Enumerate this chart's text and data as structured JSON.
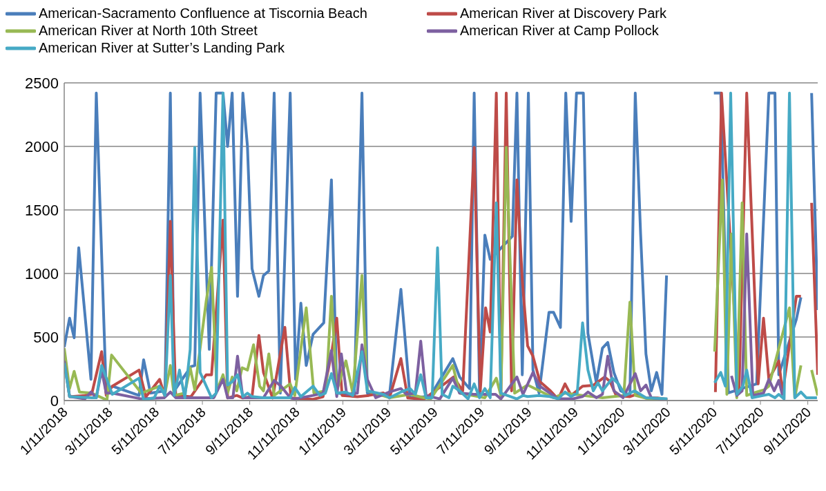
{
  "chart_data": {
    "type": "line",
    "legend": "top",
    "grid": "y",
    "marker": "none",
    "line_style": "solid",
    "xlim": [
      "2018-01-11",
      "2020-09-24"
    ],
    "xticks": [
      {
        "value": "2018-01-11",
        "label": "1/11/2018"
      },
      {
        "value": "2018-03-11",
        "label": "3/11/2018"
      },
      {
        "value": "2018-05-11",
        "label": "5/11/2018"
      },
      {
        "value": "2018-07-11",
        "label": "7/11/2018"
      },
      {
        "value": "2018-09-11",
        "label": "9/11/2018"
      },
      {
        "value": "2018-11-11",
        "label": "11/11/2018"
      },
      {
        "value": "2019-01-11",
        "label": "1/11/2019"
      },
      {
        "value": "2019-03-11",
        "label": "3/11/2019"
      },
      {
        "value": "2019-05-11",
        "label": "5/11/2019"
      },
      {
        "value": "2019-07-11",
        "label": "7/11/2019"
      },
      {
        "value": "2019-09-11",
        "label": "9/11/2019"
      },
      {
        "value": "2019-11-11",
        "label": "11/11/2019"
      },
      {
        "value": "2020-01-11",
        "label": "1/11/2020"
      },
      {
        "value": "2020-03-11",
        "label": "3/11/2020"
      },
      {
        "value": "2020-05-11",
        "label": "5/11/2020"
      },
      {
        "value": "2020-07-11",
        "label": "7/11/2020"
      },
      {
        "value": "2020-09-11",
        "label": "9/11/2020"
      }
    ],
    "ylim": [
      0,
      2500
    ],
    "yticks": [
      0,
      500,
      1000,
      1500,
      2000,
      2500
    ],
    "series": [
      {
        "name": "American-Sacramento Confluence at Tiscornia Beach",
        "color": "#4a7ebb",
        "x": [
          "2018-01-11",
          "2018-01-18",
          "2018-01-24",
          "2018-01-30",
          "2018-02-15",
          "2018-02-22",
          "2018-03-07",
          "2018-03-15",
          "2018-04-19",
          "2018-04-25",
          "2018-05-04",
          "2018-05-23",
          "2018-05-30",
          "2018-06-04",
          "2018-06-26",
          "2018-07-01",
          "2018-07-08",
          "2018-07-20",
          "2018-07-29",
          "2018-08-07",
          "2018-08-13",
          "2018-08-19",
          "2018-08-26",
          "2018-09-02",
          "2018-09-08",
          "2018-09-14",
          "2018-09-23",
          "2018-09-29",
          "2018-10-06",
          "2018-10-13",
          "2018-10-21",
          "2018-11-03",
          "2018-11-10",
          "2018-11-17",
          "2018-11-24",
          "2018-12-03",
          "2018-12-17",
          "2018-12-27",
          "2019-01-03",
          "2019-01-26",
          "2019-02-05",
          "2019-02-12",
          "2019-03-13",
          "2019-03-28",
          "2019-04-09",
          "2019-04-27",
          "2019-05-06",
          "2019-06-04",
          "2019-06-13",
          "2019-06-26",
          "2019-07-02",
          "2019-07-09",
          "2019-07-16",
          "2019-07-23",
          "2019-08-21",
          "2019-08-27",
          "2019-09-03",
          "2019-09-11",
          "2019-09-17",
          "2019-09-25",
          "2019-10-08",
          "2019-10-14",
          "2019-10-23",
          "2019-10-30",
          "2019-11-06",
          "2019-11-13",
          "2019-11-22",
          "2019-11-28",
          "2019-12-09",
          "2019-12-17",
          "2019-12-24",
          "2020-01-01",
          "2020-01-10",
          "2020-01-22",
          "2020-01-29",
          "2020-02-05",
          "2020-02-12",
          "2020-02-19",
          "2020-02-26",
          "2020-03-04",
          "2020-03-10",
          "2020-04-10",
          "2020-05-11",
          "2020-05-20",
          "2020-05-30",
          "2020-07-06",
          "2020-07-22",
          "2020-07-30",
          "2020-08-04",
          "2020-08-27",
          "2020-09-02",
          "2020-09-09",
          "2020-09-16",
          "2020-09-24"
        ],
        "values": [
          421,
          648,
          494,
          1202,
          167,
          2420,
          58,
          113,
          40,
          321,
          58,
          76,
          2420,
          76,
          267,
          276,
          2420,
          403,
          2420,
          2420,
          2000,
          2420,
          820,
          2420,
          2000,
          1038,
          820,
          984,
          1020,
          2420,
          58,
          2420,
          167,
          766,
          276,
          521,
          612,
          1737,
          60,
          40,
          2420,
          58,
          40,
          875,
          22,
          30,
          40,
          330,
          185,
          94,
          2420,
          58,
          1302,
          1111,
          1293,
          2420,
          203,
          2420,
          240,
          58,
          694,
          694,
          575,
          2420,
          1410,
          2420,
          2420,
          530,
          140,
          412,
          457,
          221,
          76,
          40,
          2420,
          1311,
          367,
          76,
          221,
          49,
          984,
          null,
          2420,
          2420,
          60,
          131,
          2420,
          2420,
          203,
          639,
          812,
          null,
          2420,
          712
        ]
      },
      {
        "name": "American River at Discovery Park",
        "color": "#be4b48",
        "x": [
          "2018-01-11",
          "2018-01-18",
          "2018-02-07",
          "2018-02-16",
          "2018-03-01",
          "2018-03-07",
          "2018-03-15",
          "2018-04-19",
          "2018-04-28",
          "2018-05-16",
          "2018-05-23",
          "2018-05-30",
          "2018-06-06",
          "2018-06-26",
          "2018-07-16",
          "2018-07-23",
          "2018-08-07",
          "2018-08-13",
          "2018-08-25",
          "2018-09-02",
          "2018-09-14",
          "2018-09-23",
          "2018-09-29",
          "2018-10-11",
          "2018-10-27",
          "2018-11-04",
          "2018-12-03",
          "2018-12-16",
          "2018-12-28",
          "2019-01-03",
          "2019-01-10",
          "2019-01-30",
          "2019-02-14",
          "2019-03-05",
          "2019-03-13",
          "2019-03-28",
          "2019-04-06",
          "2019-04-27",
          "2019-06-05",
          "2019-06-17",
          "2019-07-02",
          "2019-07-10",
          "2019-07-17",
          "2019-07-23",
          "2019-07-31",
          "2019-08-06",
          "2019-08-13",
          "2019-08-20",
          "2019-08-27",
          "2019-09-03",
          "2019-09-10",
          "2019-09-17",
          "2019-09-26",
          "2019-10-10",
          "2019-10-20",
          "2019-10-29",
          "2019-11-06",
          "2019-11-21",
          "2019-12-05",
          "2019-12-20",
          "2019-12-27",
          "2020-01-04",
          "2020-01-22",
          "2020-01-31",
          "2020-02-12",
          "2020-02-27",
          "2020-03-11",
          "2020-04-10",
          "2020-05-13",
          "2020-05-21",
          "2020-06-13",
          "2020-06-23",
          "2020-07-08",
          "2020-07-15",
          "2020-07-22",
          "2020-08-04",
          "2020-08-09",
          "2020-08-27",
          "2020-09-02",
          "2020-09-09",
          "2020-09-16",
          "2020-09-24"
        ],
        "values": [
          330,
          30,
          40,
          50,
          385,
          40,
          113,
          240,
          30,
          167,
          30,
          1411,
          40,
          30,
          203,
          203,
          1420,
          20,
          40,
          20,
          30,
          512,
          221,
          20,
          576,
          20,
          10,
          30,
          403,
          648,
          40,
          30,
          40,
          60,
          20,
          330,
          20,
          10,
          185,
          76,
          1992,
          76,
          730,
          539,
          2420,
          58,
          2420,
          76,
          1737,
          948,
          430,
          349,
          149,
          76,
          10,
          131,
          40,
          113,
          120,
          185,
          150,
          40,
          30,
          50,
          20,
          20,
          10,
          null,
          67,
          2420,
          94,
          2420,
          131,
          648,
          167,
          312,
          58,
          820,
          820,
          null,
          1556,
          203
        ]
      },
      {
        "name": "American River at North 10th Street",
        "color": "#98b954",
        "x": [
          "2018-01-11",
          "2018-01-18",
          "2018-01-24",
          "2018-01-31",
          "2018-02-16",
          "2018-03-08",
          "2018-03-14",
          "2018-04-22",
          "2018-05-16",
          "2018-05-23",
          "2018-05-30",
          "2018-06-04",
          "2018-06-18",
          "2018-06-25",
          "2018-07-01",
          "2018-07-16",
          "2018-07-23",
          "2018-07-30",
          "2018-08-07",
          "2018-08-13",
          "2018-08-19",
          "2018-08-25",
          "2018-09-01",
          "2018-09-08",
          "2018-09-16",
          "2018-09-24",
          "2018-09-29",
          "2018-10-06",
          "2018-10-13",
          "2018-11-03",
          "2018-11-09",
          "2018-11-24",
          "2018-12-04",
          "2018-12-20",
          "2018-12-27",
          "2019-01-03",
          "2019-01-15",
          "2019-01-24",
          "2019-02-05",
          "2019-02-12",
          "2019-03-13",
          "2019-04-09",
          "2019-04-27",
          "2019-05-06",
          "2019-06-04",
          "2019-06-13",
          "2019-07-16",
          "2019-07-31",
          "2019-08-06",
          "2019-08-13",
          "2019-08-24",
          "2019-09-10",
          "2019-10-14",
          "2019-10-29",
          "2019-11-21",
          "2019-12-17",
          "2020-01-14",
          "2020-01-22",
          "2020-01-29",
          "2020-02-15",
          "2020-03-11",
          "2020-04-10",
          "2020-05-12",
          "2020-05-22",
          "2020-05-28",
          "2020-06-03",
          "2020-06-10",
          "2020-06-17",
          "2020-06-23",
          "2020-07-06",
          "2020-07-16",
          "2020-07-22",
          "2020-08-18",
          "2020-08-25",
          "2020-09-02",
          "2020-09-09",
          "2020-09-16",
          "2020-09-24"
        ],
        "values": [
          412,
          95,
          230,
          67,
          58,
          4,
          358,
          58,
          113,
          58,
          276,
          40,
          58,
          258,
          85,
          784,
          1048,
          76,
          203,
          58,
          185,
          76,
          258,
          240,
          439,
          113,
          76,
          367,
          40,
          131,
          40,
          730,
          58,
          76,
          821,
          76,
          312,
          58,
          984,
          76,
          22,
          49,
          22,
          13,
          276,
          58,
          22,
          176,
          40,
          1992,
          58,
          122,
          22,
          58,
          40,
          22,
          40,
          775,
          40,
          13,
          4,
          null,
          385,
          1737,
          49,
          1311,
          22,
          1556,
          40,
          67,
          85,
          113,
          730,
          22,
          276,
          null,
          240,
          40
        ]
      },
      {
        "name": "American River at Camp Pollock",
        "color": "#7d60a0",
        "x": [
          "2018-01-11",
          "2018-01-18",
          "2018-02-07",
          "2018-02-15",
          "2018-02-22",
          "2018-03-01",
          "2018-03-07",
          "2018-03-15",
          "2018-04-22",
          "2018-05-22",
          "2018-05-30",
          "2018-06-06",
          "2018-07-26",
          "2018-08-07",
          "2018-08-13",
          "2018-08-20",
          "2018-08-26",
          "2018-09-02",
          "2018-09-29",
          "2018-10-13",
          "2018-10-22",
          "2018-11-03",
          "2018-11-09",
          "2018-12-03",
          "2018-12-16",
          "2018-12-27",
          "2019-01-03",
          "2019-01-09",
          "2019-01-16",
          "2019-01-30",
          "2019-02-05",
          "2019-02-12",
          "2019-02-23",
          "2019-03-13",
          "2019-03-28",
          "2019-04-04",
          "2019-04-16",
          "2019-04-23",
          "2019-04-30",
          "2019-05-18",
          "2019-06-04",
          "2019-06-13",
          "2019-07-02",
          "2019-07-16",
          "2019-07-30",
          "2019-08-06",
          "2019-08-27",
          "2019-09-04",
          "2019-09-17",
          "2019-09-26",
          "2019-10-20",
          "2019-11-08",
          "2019-11-21",
          "2019-11-28",
          "2019-12-09",
          "2019-12-17",
          "2019-12-24",
          "2020-01-01",
          "2020-01-13",
          "2020-01-29",
          "2020-02-05",
          "2020-02-12",
          "2020-02-19",
          "2020-03-11",
          "2020-04-10",
          "2020-06-03",
          "2020-06-10",
          "2020-06-17",
          "2020-06-23",
          "2020-07-01",
          "2020-07-15",
          "2020-07-22",
          "2020-07-29",
          "2020-08-04",
          "2020-08-09"
        ],
        "values": [
          312,
          31,
          13,
          67,
          22,
          240,
          58,
          58,
          13,
          22,
          67,
          22,
          22,
          167,
          22,
          22,
          349,
          22,
          22,
          158,
          113,
          22,
          13,
          40,
          58,
          394,
          31,
          367,
          49,
          58,
          439,
          167,
          22,
          67,
          94,
          49,
          58,
          467,
          40,
          13,
          176,
          58,
          49,
          49,
          49,
          13,
          185,
          49,
          221,
          113,
          13,
          13,
          31,
          67,
          22,
          49,
          349,
          76,
          22,
          212,
          76,
          122,
          22,
          4,
          null,
          194,
          40,
          76,
          1311,
          40,
          58,
          167,
          76,
          158,
          40
        ]
      },
      {
        "name": "American River at Sutter’s Landing Park",
        "color": "#46aac5",
        "x": [
          "2018-01-11",
          "2018-01-18",
          "2018-02-16",
          "2018-02-22",
          "2018-03-01",
          "2018-03-15",
          "2018-04-19",
          "2018-04-25",
          "2018-05-09",
          "2018-05-16",
          "2018-05-23",
          "2018-05-30",
          "2018-06-04",
          "2018-06-11",
          "2018-06-18",
          "2018-06-25",
          "2018-07-01",
          "2018-07-08",
          "2018-07-23",
          "2018-07-29",
          "2018-08-07",
          "2018-08-13",
          "2018-08-19",
          "2018-08-26",
          "2018-09-02",
          "2018-09-08",
          "2018-09-14",
          "2018-09-29",
          "2018-11-03",
          "2018-11-09",
          "2018-11-17",
          "2018-12-03",
          "2018-12-12",
          "2018-12-19",
          "2018-12-27",
          "2019-01-03",
          "2019-01-15",
          "2019-01-24",
          "2019-02-05",
          "2019-02-12",
          "2019-03-05",
          "2019-03-13",
          "2019-03-28",
          "2019-04-09",
          "2019-04-16",
          "2019-04-23",
          "2019-04-30",
          "2019-05-08",
          "2019-05-15",
          "2019-05-21",
          "2019-05-30",
          "2019-06-04",
          "2019-06-13",
          "2019-06-24",
          "2019-07-02",
          "2019-07-09",
          "2019-07-16",
          "2019-07-23",
          "2019-07-31",
          "2019-08-06",
          "2019-08-27",
          "2019-09-04",
          "2019-09-10",
          "2019-09-25",
          "2019-10-09",
          "2019-10-20",
          "2019-10-29",
          "2019-11-06",
          "2019-11-14",
          "2019-11-21",
          "2019-11-28",
          "2019-12-05",
          "2019-12-11",
          "2019-12-17",
          "2019-12-30",
          "2020-01-07",
          "2020-01-16",
          "2020-01-28",
          "2020-02-12",
          "2020-03-11",
          "2020-04-10",
          "2020-05-12",
          "2020-05-20",
          "2020-05-26",
          "2020-06-02",
          "2020-06-10",
          "2020-06-18",
          "2020-06-23",
          "2020-06-30",
          "2020-07-15",
          "2020-07-22",
          "2020-07-30",
          "2020-08-04",
          "2020-08-11",
          "2020-08-18",
          "2020-08-25",
          "2020-09-02",
          "2020-09-09",
          "2020-09-23"
        ],
        "values": [
          294,
          31,
          22,
          22,
          276,
          49,
          176,
          4,
          22,
          113,
          40,
          984,
          40,
          240,
          22,
          403,
          1992,
          221,
          22,
          58,
          2420,
          122,
          149,
          203,
          31,
          58,
          31,
          22,
          22,
          103,
          31,
          113,
          40,
          58,
          212,
          58,
          67,
          40,
          385,
          76,
          49,
          22,
          67,
          94,
          49,
          203,
          22,
          22,
          1202,
          49,
          22,
          113,
          76,
          13,
          131,
          22,
          94,
          22,
          1556,
          58,
          13,
          40,
          31,
          40,
          31,
          13,
          67,
          31,
          58,
          612,
          240,
          76,
          140,
          76,
          176,
          131,
          40,
          76,
          22,
          13,
          null,
          140,
          221,
          113,
          2420,
          49,
          113,
          240,
          22,
          40,
          49,
          22,
          49,
          13,
          2420,
          22,
          67,
          22,
          22
        ]
      }
    ]
  }
}
